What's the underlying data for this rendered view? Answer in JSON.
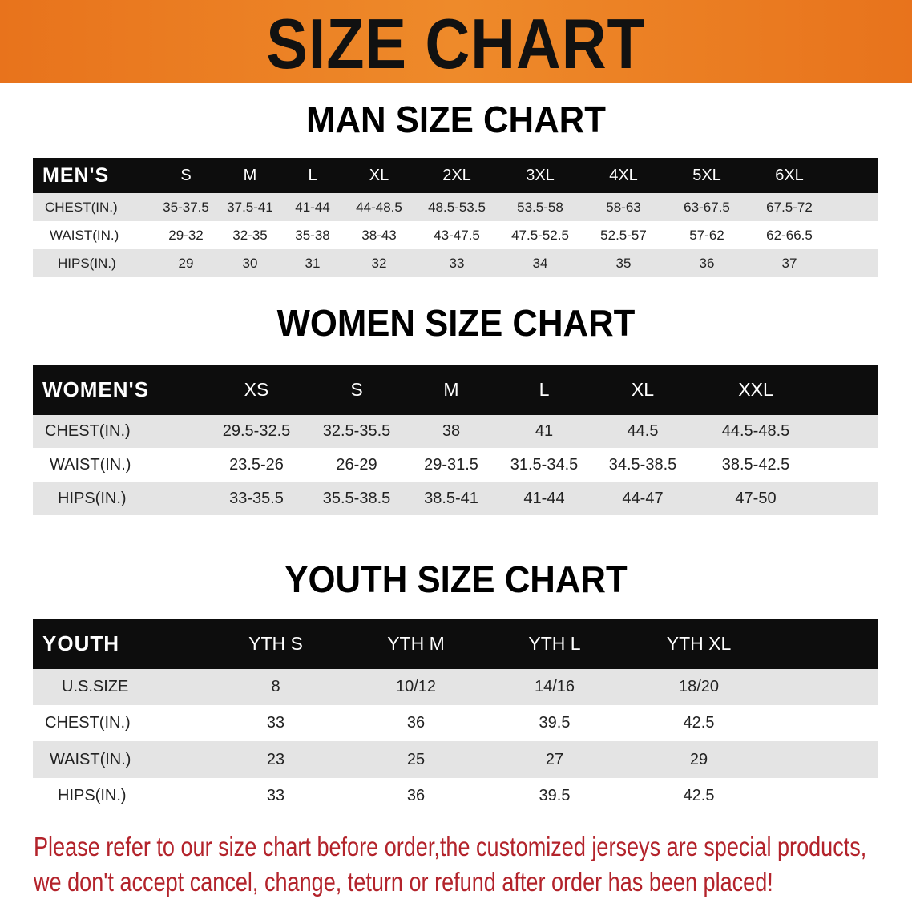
{
  "banner": {
    "title": "SIZE CHART",
    "color": "#e8731c"
  },
  "men": {
    "title": "MAN SIZE CHART",
    "header": [
      "MEN'S",
      "S",
      "M",
      "L",
      "XL",
      "2XL",
      "3XL",
      "4XL",
      "5XL",
      "6XL"
    ],
    "rows": [
      [
        "CHEST(IN.)",
        "35-37.5",
        "37.5-41",
        "41-44",
        "44-48.5",
        "48.5-53.5",
        "53.5-58",
        "58-63",
        "63-67.5",
        "67.5-72"
      ],
      [
        "WAIST(IN.)",
        "29-32",
        "32-35",
        "35-38",
        "38-43",
        "43-47.5",
        "47.5-52.5",
        "52.5-57",
        "57-62",
        "62-66.5"
      ],
      [
        "HIPS(IN.)",
        "29",
        "30",
        "31",
        "32",
        "33",
        "34",
        "35",
        "36",
        "37"
      ]
    ]
  },
  "women": {
    "title": "WOMEN SIZE CHART",
    "header": [
      "WOMEN'S",
      "XS",
      "S",
      "M",
      "L",
      "XL",
      "XXL"
    ],
    "rows": [
      [
        "CHEST(IN.)",
        "29.5-32.5",
        "32.5-35.5",
        "38",
        "41",
        "44.5",
        "44.5-48.5"
      ],
      [
        "WAIST(IN.)",
        "23.5-26",
        "26-29",
        "29-31.5",
        "31.5-34.5",
        "34.5-38.5",
        "38.5-42.5"
      ],
      [
        "HIPS(IN.)",
        "33-35.5",
        "35.5-38.5",
        "38.5-41",
        "41-44",
        "44-47",
        "47-50"
      ]
    ]
  },
  "youth": {
    "title": "YOUTH SIZE CHART",
    "header": [
      "YOUTH",
      "YTH S",
      "YTH M",
      "YTH L",
      "YTH XL"
    ],
    "rows": [
      [
        "U.S.SIZE",
        "8",
        "10/12",
        "14/16",
        "18/20"
      ],
      [
        "CHEST(IN.)",
        "33",
        "36",
        "39.5",
        "42.5"
      ],
      [
        "WAIST(IN.)",
        "23",
        "25",
        "27",
        "29"
      ],
      [
        "HIPS(IN.)",
        "33",
        "36",
        "39.5",
        "42.5"
      ]
    ]
  },
  "notice": {
    "line1": "Please refer to our size chart before order,the customized jerseys are special products,",
    "line2": "we don't accept cancel, change, teturn or refund after order has been placed!",
    "color": "#b3232b"
  }
}
